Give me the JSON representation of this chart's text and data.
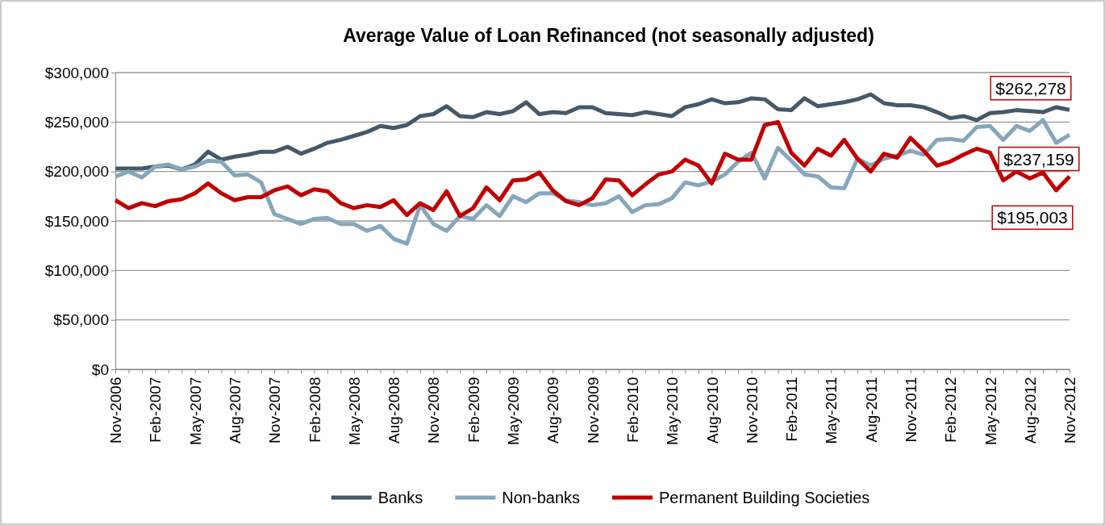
{
  "chart_data": {
    "type": "line",
    "title": "Average Value of Loan Refinanced (not seasonally adjusted)",
    "categories": [
      "Nov-2006",
      null,
      null,
      "Feb-2007",
      null,
      null,
      "May-2007",
      null,
      null,
      "Aug-2007",
      null,
      null,
      "Nov-2007",
      null,
      null,
      "Feb-2008",
      null,
      null,
      "May-2008",
      null,
      null,
      "Aug-2008",
      null,
      null,
      "Nov-2008",
      null,
      null,
      "Feb-2009",
      null,
      null,
      "May-2009",
      null,
      null,
      "Aug-2009",
      null,
      null,
      "Nov-2009",
      null,
      null,
      "Feb-2010",
      null,
      null,
      "May-2010",
      null,
      null,
      "Aug-2010",
      null,
      null,
      "Nov-2010",
      null,
      null,
      "Feb-2011",
      null,
      null,
      "May-2011",
      null,
      null,
      "Aug-2011",
      null,
      null,
      "Nov-2011",
      null,
      null,
      "Feb-2012",
      null,
      null,
      "May-2012",
      null,
      null,
      "Aug-2012",
      null,
      null,
      "Nov-2012"
    ],
    "series": [
      {
        "name": "Banks",
        "color": "#44596a",
        "values": [
          203000,
          203000,
          203000,
          205000,
          206000,
          202000,
          207000,
          220000,
          212000,
          215000,
          217000,
          220000,
          220000,
          225000,
          218000,
          223000,
          229000,
          232000,
          236000,
          240000,
          246000,
          244000,
          247000,
          256000,
          258000,
          266000,
          256000,
          255000,
          260000,
          258000,
          261000,
          270000,
          258000,
          260000,
          259000,
          265000,
          265000,
          259000,
          258000,
          257000,
          260000,
          258000,
          256000,
          265000,
          268000,
          273000,
          269000,
          270000,
          274000,
          273000,
          263000,
          262000,
          274000,
          266000,
          268000,
          270000,
          273000,
          278000,
          269000,
          267000,
          267000,
          265000,
          260000,
          254000,
          256000,
          252000,
          259000,
          260000,
          262000,
          261000,
          260000,
          265000,
          262278
        ]
      },
      {
        "name": "Non-banks",
        "color": "#86a6bb",
        "values": [
          195000,
          200000,
          194000,
          205000,
          207000,
          202000,
          205000,
          211000,
          210000,
          196000,
          197000,
          189000,
          157000,
          152000,
          147000,
          152000,
          153000,
          147000,
          147000,
          140000,
          145000,
          132000,
          127000,
          166000,
          147000,
          140000,
          155000,
          152000,
          166000,
          155000,
          175000,
          169000,
          178000,
          178000,
          171000,
          169000,
          166000,
          168000,
          175000,
          159000,
          166000,
          167000,
          173000,
          189000,
          186000,
          190000,
          197000,
          210000,
          219000,
          193000,
          224000,
          211000,
          197000,
          195000,
          184000,
          183000,
          213000,
          206000,
          213000,
          216000,
          221000,
          217000,
          232000,
          233000,
          231000,
          245000,
          246000,
          232000,
          246000,
          241000,
          252000,
          229000,
          237159
        ]
      },
      {
        "name": "Permanent Building Societies",
        "color": "#c00000",
        "values": [
          171000,
          163000,
          168000,
          165000,
          170000,
          172000,
          178000,
          188000,
          178000,
          171000,
          174000,
          174000,
          181000,
          185000,
          176000,
          182000,
          180000,
          168000,
          163000,
          166000,
          164000,
          171000,
          156000,
          168000,
          161000,
          180000,
          155000,
          163000,
          184000,
          171000,
          191000,
          192000,
          199000,
          181000,
          170000,
          166000,
          173000,
          192000,
          191000,
          176000,
          187000,
          197000,
          200000,
          212000,
          206000,
          188000,
          218000,
          212000,
          212000,
          247000,
          250000,
          219000,
          206000,
          223000,
          216000,
          232000,
          213000,
          200000,
          218000,
          214000,
          234000,
          221000,
          206000,
          210000,
          217000,
          223000,
          219000,
          191000,
          200000,
          193000,
          199000,
          181000,
          195003
        ]
      }
    ],
    "ylim": [
      0,
      300000
    ],
    "yticks": [
      {
        "value": 0,
        "label": "$0"
      },
      {
        "value": 50000,
        "label": "$50,000"
      },
      {
        "value": 100000,
        "label": "$100,000"
      },
      {
        "value": 150000,
        "label": "$150,000"
      },
      {
        "value": 200000,
        "label": "$200,000"
      },
      {
        "value": 250000,
        "label": "$250,000"
      },
      {
        "value": 300000,
        "label": "$300,000"
      }
    ],
    "grid": "y",
    "legend": "bottom",
    "marker": "none",
    "line_style": "solid",
    "annotations": [
      {
        "text": "$262,278",
        "x": "Nov-2012",
        "y": 262278
      },
      {
        "text": "$237,159",
        "x": "Nov-2012",
        "y": 237159
      },
      {
        "text": "$195,003",
        "x": "Nov-2012",
        "y": 195003
      }
    ]
  }
}
